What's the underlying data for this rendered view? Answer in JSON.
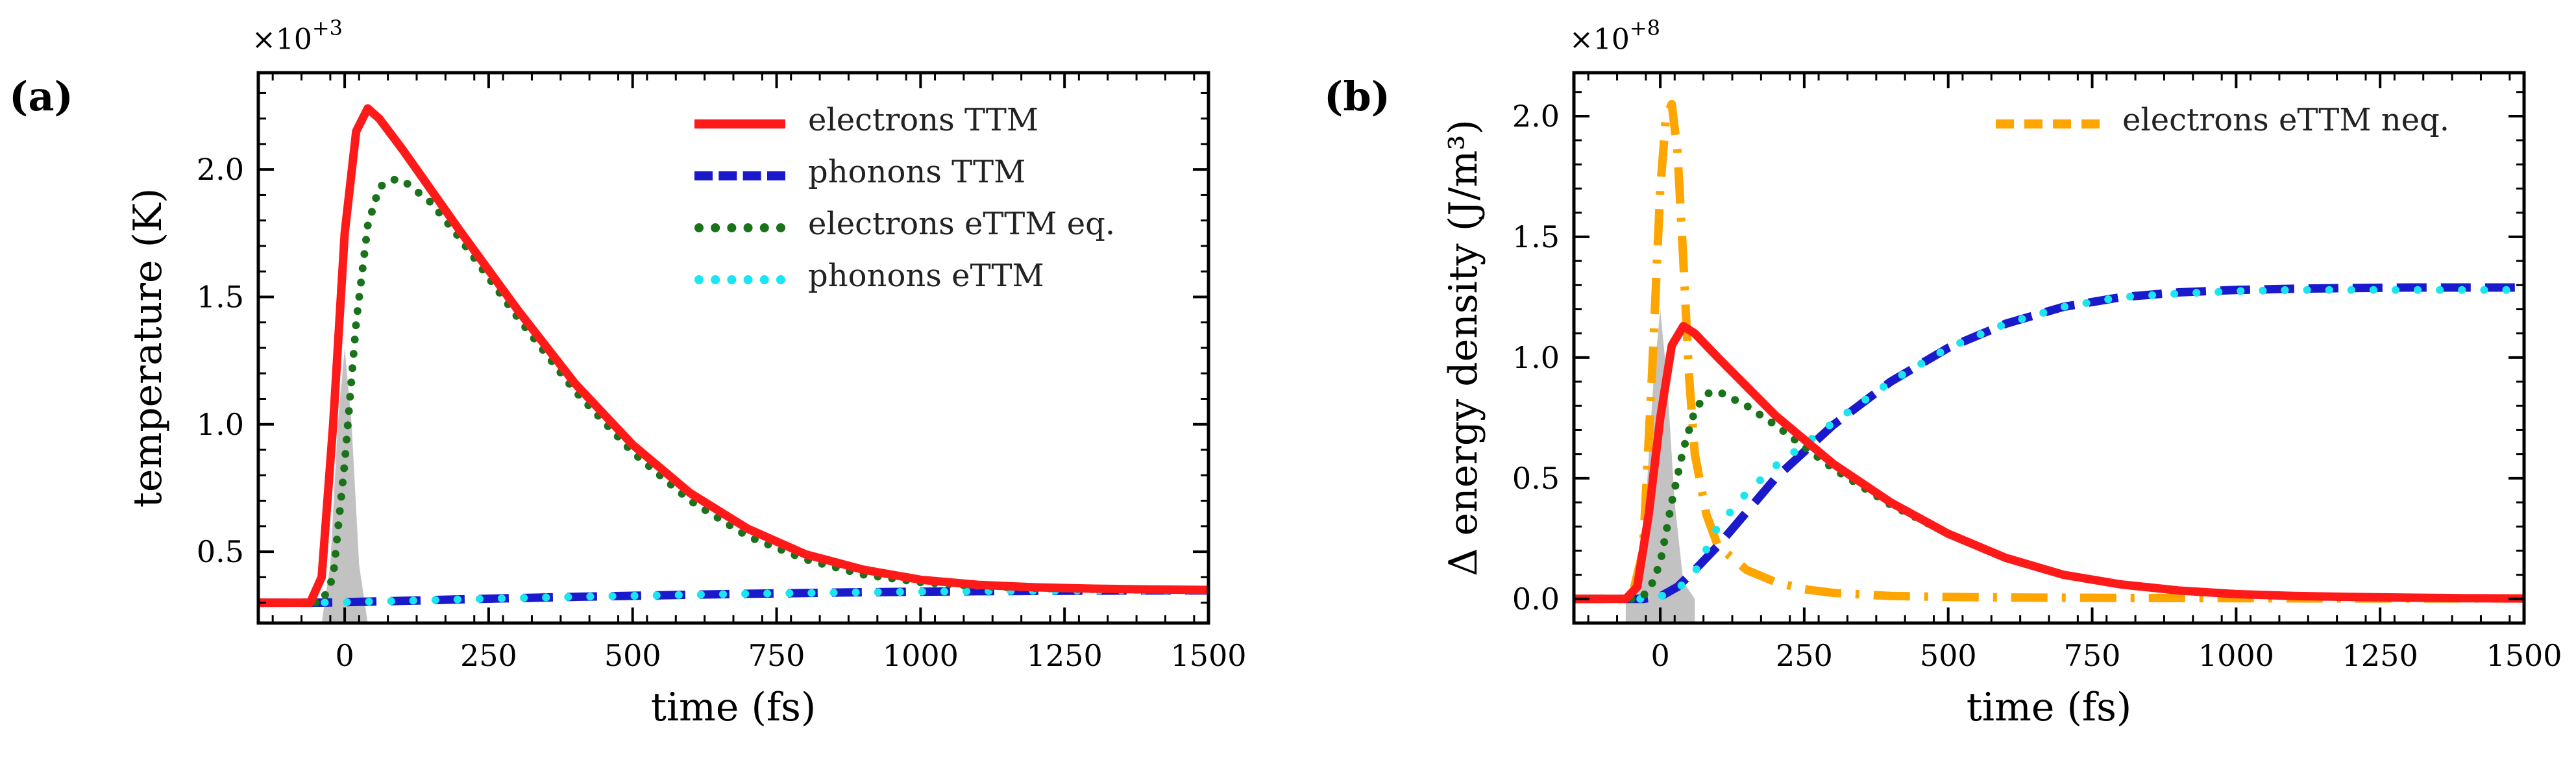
{
  "colors": {
    "electrons_ttm": "#ff1a1a",
    "phonons_ttm": "#1a1acc",
    "electrons_ettm_eq": "#1a731a",
    "phonons_ettm": "#1ae6f2",
    "electrons_ettm_neq": "#ffa500",
    "pulse": "#bfbfbf"
  },
  "chart_data": [
    {
      "panel_label": "(a)",
      "type": "line",
      "multiplier_base": "×10",
      "multiplier_exp": "+3",
      "xlabel": "time (fs)",
      "ylabel": "temperature (K)",
      "xlim": [
        -150,
        1500
      ],
      "ylim": [
        0.22,
        2.38
      ],
      "xticks": [
        0,
        250,
        500,
        750,
        1000,
        1250,
        1500
      ],
      "yticks": [
        0.5,
        1.0,
        1.5,
        2.0
      ],
      "ytick_labels": [
        "0.5",
        "1.0",
        "1.5",
        "2.0"
      ],
      "legend": [
        {
          "label": "electrons TTM",
          "series": "electrons_ttm"
        },
        {
          "label": "phonons TTM",
          "series": "phonons_ttm"
        },
        {
          "label": "electrons eTTM eq.",
          "series": "electrons_ettm_eq"
        },
        {
          "label": "phonons eTTM",
          "series": "phonons_ettm"
        }
      ],
      "pulse": {
        "x": [
          -60,
          -40,
          -25,
          -12,
          0,
          12,
          25,
          40,
          60
        ],
        "y": [
          0.0,
          0.08,
          0.45,
          1.0,
          1.3,
          1.0,
          0.45,
          0.08,
          0.0
        ]
      },
      "series": [
        {
          "name": "electrons_ttm",
          "x": [
            -150,
            -60,
            -40,
            -20,
            0,
            20,
            40,
            60,
            100,
            150,
            200,
            300,
            400,
            500,
            600,
            700,
            800,
            900,
            1000,
            1100,
            1200,
            1300,
            1400,
            1500
          ],
          "y": [
            0.3,
            0.3,
            0.4,
            1.0,
            1.75,
            2.15,
            2.24,
            2.2,
            2.08,
            1.92,
            1.76,
            1.45,
            1.16,
            0.92,
            0.73,
            0.59,
            0.49,
            0.43,
            0.39,
            0.37,
            0.36,
            0.355,
            0.352,
            0.35
          ]
        },
        {
          "name": "phonons_ttm",
          "x": [
            -150,
            -50,
            0,
            100,
            200,
            300,
            400,
            500,
            600,
            700,
            800,
            900,
            1000,
            1100,
            1200,
            1300,
            1400,
            1500
          ],
          "y": [
            0.3,
            0.3,
            0.302,
            0.307,
            0.313,
            0.318,
            0.323,
            0.327,
            0.331,
            0.335,
            0.338,
            0.341,
            0.343,
            0.345,
            0.346,
            0.347,
            0.348,
            0.348
          ]
        },
        {
          "name": "electrons_ettm_eq",
          "x": [
            -150,
            -40,
            -20,
            0,
            20,
            40,
            60,
            80,
            100,
            150,
            200,
            300,
            400,
            500,
            600,
            700,
            800,
            900,
            1000,
            1100,
            1200,
            1300,
            1400,
            1500
          ],
          "y": [
            0.3,
            0.3,
            0.4,
            0.85,
            1.4,
            1.78,
            1.93,
            1.96,
            1.96,
            1.87,
            1.73,
            1.42,
            1.13,
            0.89,
            0.7,
            0.56,
            0.47,
            0.41,
            0.38,
            0.365,
            0.357,
            0.353,
            0.35,
            0.35
          ]
        },
        {
          "name": "phonons_ettm",
          "x": [
            -150,
            -50,
            0,
            100,
            200,
            300,
            400,
            500,
            600,
            700,
            800,
            900,
            1000,
            1100,
            1200,
            1300,
            1400,
            1500
          ],
          "y": [
            0.3,
            0.3,
            0.302,
            0.307,
            0.313,
            0.318,
            0.323,
            0.327,
            0.331,
            0.335,
            0.338,
            0.341,
            0.343,
            0.345,
            0.346,
            0.347,
            0.348,
            0.348
          ]
        }
      ]
    },
    {
      "panel_label": "(b)",
      "type": "line",
      "multiplier_base": "×10",
      "multiplier_exp": "+8",
      "xlabel": "time (fs)",
      "ylabel": "Δ energy density (J/m³)",
      "xlim": [
        -150,
        1500
      ],
      "ylim": [
        -0.1,
        2.18
      ],
      "xticks": [
        0,
        250,
        500,
        750,
        1000,
        1250,
        1500
      ],
      "yticks": [
        0.0,
        0.5,
        1.0,
        1.5,
        2.0
      ],
      "ytick_labels": [
        "0.0",
        "0.5",
        "1.0",
        "1.5",
        "2.0"
      ],
      "legend": [
        {
          "label": "electrons eTTM neq.",
          "series": "electrons_ettm_neq"
        }
      ],
      "pulse": {
        "x": [
          -60,
          -40,
          -25,
          -12,
          0,
          12,
          25,
          40,
          60
        ],
        "y": [
          0.0,
          0.07,
          0.4,
          0.9,
          1.2,
          0.9,
          0.4,
          0.07,
          0.0
        ]
      },
      "series": [
        {
          "name": "electrons_ttm",
          "x": [
            -150,
            -60,
            -40,
            -20,
            0,
            20,
            40,
            60,
            100,
            150,
            200,
            300,
            400,
            500,
            600,
            700,
            800,
            900,
            1000,
            1100,
            1200,
            1300,
            1400,
            1500
          ],
          "y": [
            0.0,
            0.0,
            0.05,
            0.35,
            0.75,
            1.05,
            1.13,
            1.1,
            1.0,
            0.88,
            0.76,
            0.56,
            0.4,
            0.27,
            0.17,
            0.1,
            0.06,
            0.035,
            0.02,
            0.012,
            0.008,
            0.005,
            0.003,
            0.002
          ]
        },
        {
          "name": "phonons_ttm",
          "x": [
            -150,
            -30,
            0,
            30,
            60,
            100,
            150,
            200,
            250,
            300,
            400,
            500,
            600,
            700,
            800,
            900,
            1000,
            1100,
            1200,
            1300,
            1400,
            1500
          ],
          "y": [
            0.0,
            0.0,
            0.01,
            0.05,
            0.12,
            0.22,
            0.36,
            0.5,
            0.61,
            0.72,
            0.9,
            1.04,
            1.14,
            1.21,
            1.25,
            1.27,
            1.28,
            1.285,
            1.288,
            1.29,
            1.29,
            1.29
          ]
        },
        {
          "name": "electrons_ettm_eq",
          "x": [
            -150,
            -40,
            -20,
            0,
            20,
            40,
            60,
            80,
            100,
            150,
            200,
            300,
            400,
            500,
            600,
            700,
            800,
            900,
            1000,
            1100,
            1200,
            1300,
            1400,
            1500
          ],
          "y": [
            0.0,
            0.0,
            0.03,
            0.15,
            0.4,
            0.62,
            0.78,
            0.85,
            0.86,
            0.8,
            0.72,
            0.54,
            0.39,
            0.27,
            0.17,
            0.1,
            0.06,
            0.035,
            0.02,
            0.012,
            0.008,
            0.005,
            0.003,
            0.002
          ]
        },
        {
          "name": "phonons_ettm",
          "x": [
            -150,
            -30,
            0,
            30,
            60,
            100,
            150,
            200,
            250,
            300,
            400,
            500,
            600,
            700,
            800,
            900,
            1000,
            1100,
            1200,
            1300,
            1400,
            1500
          ],
          "y": [
            0.0,
            0.0,
            0.01,
            0.04,
            0.11,
            0.3,
            0.44,
            0.55,
            0.64,
            0.73,
            0.9,
            1.04,
            1.14,
            1.21,
            1.25,
            1.265,
            1.275,
            1.28,
            1.28,
            1.28,
            1.28,
            1.28
          ]
        },
        {
          "name": "electrons_ettm_neq",
          "x": [
            -150,
            -50,
            -30,
            -15,
            0,
            10,
            20,
            30,
            40,
            50,
            60,
            80,
            100,
            150,
            200,
            250,
            300,
            400,
            500,
            600,
            700,
            800,
            1000,
            1200,
            1500
          ],
          "y": [
            0.0,
            0.0,
            0.2,
            0.9,
            1.7,
            2.0,
            2.05,
            1.85,
            1.4,
            0.92,
            0.6,
            0.35,
            0.22,
            0.12,
            0.07,
            0.04,
            0.025,
            0.012,
            0.008,
            0.006,
            0.005,
            0.004,
            0.003,
            0.002,
            0.002
          ]
        }
      ]
    }
  ]
}
